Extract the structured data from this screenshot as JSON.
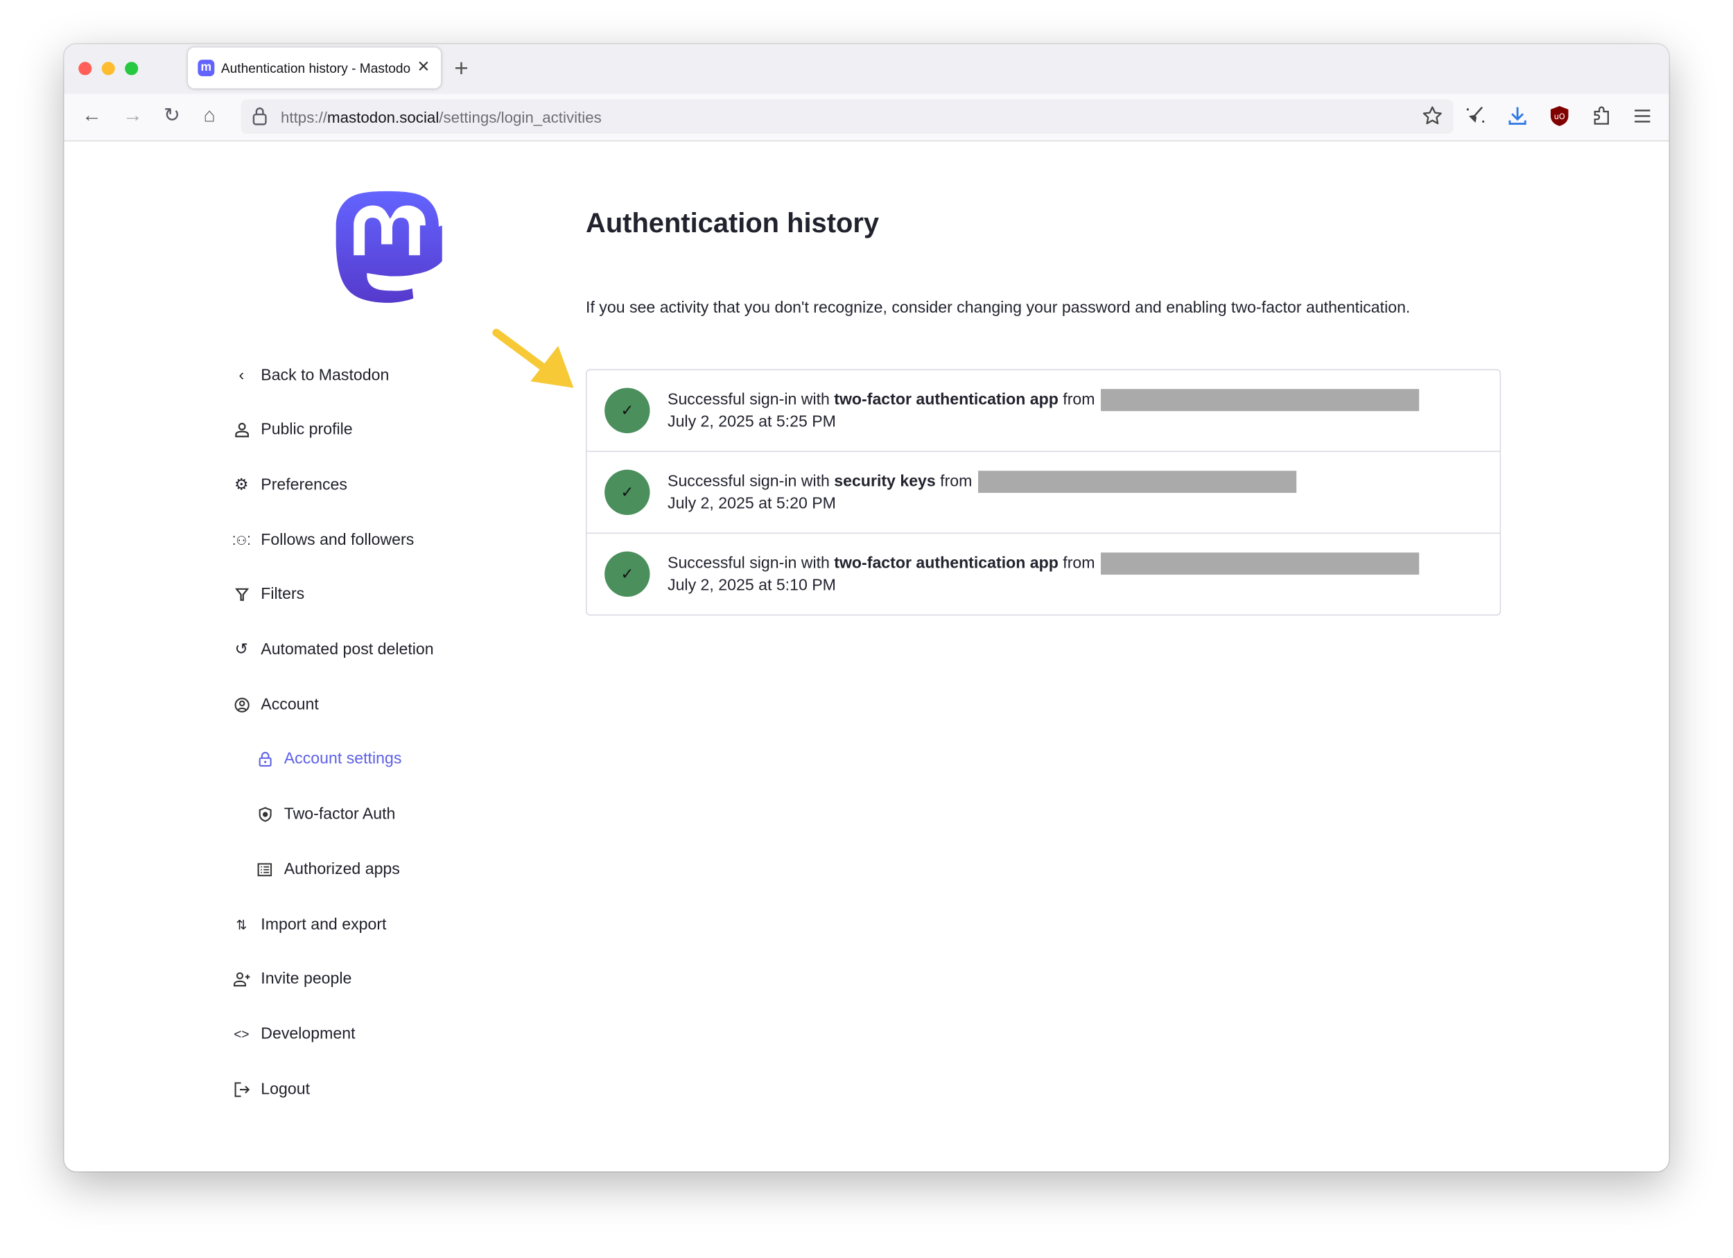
{
  "browser": {
    "tab_title": "Authentication history - Mastodon",
    "url_prefix": "https://",
    "url_host": "mastodon.social",
    "url_path": "/settings/login_activities",
    "accent_download": "#2f7ae5",
    "ublock_color": "#800000"
  },
  "sidebar": {
    "items": [
      {
        "label": "Back to Mastodon",
        "icon": "chevron-left-icon"
      },
      {
        "label": "Public profile",
        "icon": "person-icon"
      },
      {
        "label": "Preferences",
        "icon": "gear-icon"
      },
      {
        "label": "Follows and followers",
        "icon": "people-icon"
      },
      {
        "label": "Filters",
        "icon": "filter-icon"
      },
      {
        "label": "Automated post deletion",
        "icon": "history-icon"
      },
      {
        "label": "Account",
        "icon": "account-circle-icon"
      },
      {
        "label": "Account settings",
        "icon": "lock-icon",
        "active": true
      },
      {
        "label": "Two-factor Auth",
        "icon": "shield-icon"
      },
      {
        "label": "Authorized apps",
        "icon": "list-icon"
      },
      {
        "label": "Import and export",
        "icon": "import-export-icon"
      },
      {
        "label": "Invite people",
        "icon": "person-add-icon"
      },
      {
        "label": "Development",
        "icon": "code-icon"
      },
      {
        "label": "Logout",
        "icon": "logout-icon"
      }
    ],
    "active_color": "#5d5fe6"
  },
  "main": {
    "title": "Authentication history",
    "description": "If you see activity that you don't recognize, consider changing your password and enabling two-factor authentication.",
    "entries": [
      {
        "prefix": "Successful sign-in with",
        "method": "two-factor authentication app",
        "suffix": "from",
        "time": "July 2, 2025 at 5:25 PM"
      },
      {
        "prefix": "Successful sign-in with",
        "method": "security keys",
        "suffix": "from",
        "time": "July 2, 2025 at 5:20 PM"
      },
      {
        "prefix": "Successful sign-in with",
        "method": "two-factor authentication app",
        "suffix": "from",
        "time": "July 2, 2025 at 5:10 PM"
      }
    ],
    "success_color": "#4a8f5c",
    "annotation_arrow_color": "#f7c936"
  }
}
